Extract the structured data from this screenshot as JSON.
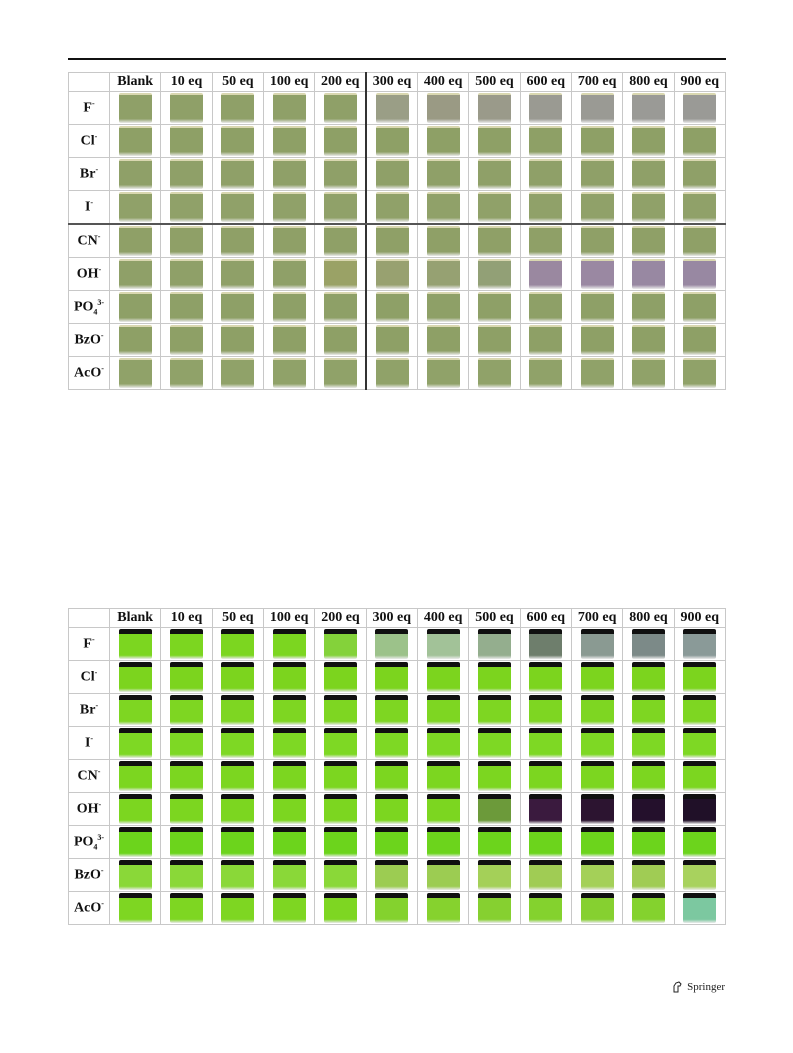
{
  "columns": [
    "Blank",
    "10 eq",
    "50 eq",
    "100 eq",
    "200 eq",
    "300 eq",
    "400 eq",
    "500 eq",
    "600 eq",
    "700 eq",
    "800 eq",
    "900 eq"
  ],
  "ions": [
    {
      "base": "F",
      "sub": "",
      "sup": "-"
    },
    {
      "base": "Cl",
      "sub": "",
      "sup": "-"
    },
    {
      "base": "Br",
      "sub": "",
      "sup": "-"
    },
    {
      "base": "I",
      "sub": "",
      "sup": "-"
    },
    {
      "base": "CN",
      "sub": "",
      "sup": "-"
    },
    {
      "base": "OH",
      "sub": "",
      "sup": "-"
    },
    {
      "base": "PO",
      "sub": "4",
      "sup": "3-"
    },
    {
      "base": "BzO",
      "sub": "",
      "sup": "-"
    },
    {
      "base": "AcO",
      "sub": "",
      "sup": "-"
    }
  ],
  "visible_light_colors": [
    [
      "#8fa068",
      "#8fa068",
      "#8fa068",
      "#8fa068",
      "#8fa068",
      "#9a9e86",
      "#9a9a84",
      "#9a9a8a",
      "#9a9a92",
      "#9a9a94",
      "#9a9a96",
      "#9a9a96"
    ],
    [
      "#8ea066",
      "#8ea066",
      "#8ea066",
      "#8ea066",
      "#8ea066",
      "#8ea066",
      "#8ea066",
      "#8ea066",
      "#8ea066",
      "#8ea066",
      "#8ea066",
      "#8ea066"
    ],
    [
      "#8fa068",
      "#8fa068",
      "#8fa068",
      "#8fa068",
      "#8fa068",
      "#8fa068",
      "#8fa068",
      "#8fa068",
      "#8fa068",
      "#8fa068",
      "#8fa068",
      "#8fa068"
    ],
    [
      "#90a169",
      "#90a169",
      "#90a169",
      "#90a169",
      "#90a169",
      "#90a169",
      "#90a169",
      "#90a169",
      "#90a169",
      "#90a169",
      "#90a169",
      "#90a169"
    ],
    [
      "#8fa067",
      "#8fa067",
      "#8fa067",
      "#8fa067",
      "#8fa067",
      "#8fa067",
      "#8fa067",
      "#8fa067",
      "#8fa067",
      "#8fa067",
      "#8fa067",
      "#8fa067"
    ],
    [
      "#8fa068",
      "#8fa068",
      "#8fa068",
      "#8fa068",
      "#9aa266",
      "#98a170",
      "#96a172",
      "#92a076",
      "#9a88a0",
      "#9a88a2",
      "#9888a2",
      "#9888a2"
    ],
    [
      "#8ea067",
      "#8ea067",
      "#8ea067",
      "#8ea067",
      "#8ea067",
      "#8ea067",
      "#8ea067",
      "#8ea067",
      "#8ea067",
      "#8ea067",
      "#8ea067",
      "#8ea067"
    ],
    [
      "#8ea066",
      "#8ea066",
      "#8ea066",
      "#8ea066",
      "#8ea066",
      "#8ea066",
      "#8ea066",
      "#8ea066",
      "#8ea066",
      "#8ea066",
      "#8ea066",
      "#8ea066"
    ],
    [
      "#90a269",
      "#90a269",
      "#90a269",
      "#90a269",
      "#90a269",
      "#90a269",
      "#90a269",
      "#90a269",
      "#90a269",
      "#90a269",
      "#90a269",
      "#90a269"
    ]
  ],
  "uv_light_colors": [
    [
      "#7cd620",
      "#7cd620",
      "#7cd620",
      "#7cd620",
      "#84d23a",
      "#9cc28a",
      "#a2c298",
      "#94ae8e",
      "#6e7e6c",
      "#8a9a92",
      "#7c8a88",
      "#8a9a98"
    ],
    [
      "#7cd41e",
      "#7cd41e",
      "#7cd41e",
      "#7cd41e",
      "#7cd41e",
      "#7cd41e",
      "#7cd41e",
      "#7cd41e",
      "#7cd41e",
      "#7cd41e",
      "#7cd41e",
      "#7cd41e"
    ],
    [
      "#7ed622",
      "#7ed622",
      "#7ed622",
      "#7ed622",
      "#7ed622",
      "#7ed622",
      "#7ed622",
      "#7ed622",
      "#7ed622",
      "#7ed622",
      "#7ed622",
      "#7ed622"
    ],
    [
      "#7ed824",
      "#7ed824",
      "#7ed824",
      "#7ed824",
      "#7ed824",
      "#7ed824",
      "#7ed824",
      "#7ed824",
      "#7ed824",
      "#7ed824",
      "#7ed824",
      "#7ed824"
    ],
    [
      "#7cd620",
      "#7cd620",
      "#7cd620",
      "#7cd620",
      "#7cd620",
      "#7cd620",
      "#7cd620",
      "#7cd620",
      "#7cd620",
      "#7cd620",
      "#7cd620",
      "#7cd620"
    ],
    [
      "#7cd620",
      "#7cd620",
      "#7cd620",
      "#7cd620",
      "#7cd620",
      "#7cd620",
      "#7cd620",
      "#6c9a3a",
      "#3a1a3e",
      "#2c1430",
      "#24102c",
      "#201028"
    ],
    [
      "#6cd41c",
      "#6cd41c",
      "#6cd41c",
      "#6cd41c",
      "#6cd41c",
      "#6cd41c",
      "#6cd41c",
      "#6cd41c",
      "#6cd41c",
      "#6cd41c",
      "#6cd41c",
      "#6cd41c"
    ],
    [
      "#8ad838",
      "#8ad838",
      "#8ad838",
      "#8ad838",
      "#8ad838",
      "#9ccc52",
      "#9ccc52",
      "#a4d058",
      "#a0cc54",
      "#a4d058",
      "#a0cc54",
      "#a8d25e"
    ],
    [
      "#7ed622",
      "#7ed622",
      "#7ed622",
      "#7ed622",
      "#7ed622",
      "#84d22e",
      "#86d22e",
      "#86d030",
      "#84d22e",
      "#86d030",
      "#84d22e",
      "#7cc8a0"
    ]
  ],
  "publisher": "Springer"
}
